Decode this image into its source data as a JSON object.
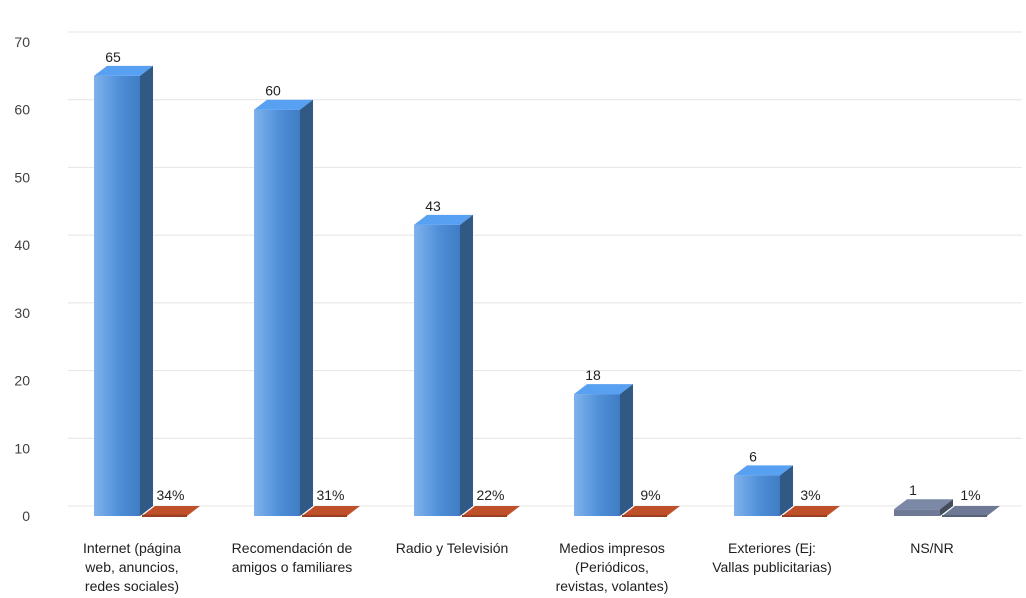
{
  "chart_data": {
    "type": "bar",
    "title": "",
    "xlabel": "",
    "ylabel": "",
    "ylim": [
      0,
      70
    ],
    "yticks": [
      0,
      10,
      20,
      30,
      40,
      50,
      60,
      70
    ],
    "grid": true,
    "style": "3d-clustered-column",
    "categories": [
      [
        "Internet (página",
        "web, anuncios,",
        "redes sociales)"
      ],
      [
        "Recomendación de",
        "amigos o familiares"
      ],
      [
        "Radio y  Televisión"
      ],
      [
        "Medios impresos",
        "(Periódicos,",
        "revistas, volantes)"
      ],
      [
        "Exteriores (Ej:",
        "Vallas publicitarias)"
      ],
      [
        "NS/NR"
      ]
    ],
    "series": [
      {
        "values": [
          65,
          60,
          43,
          18,
          6,
          1
        ],
        "labels": [
          "65",
          "60",
          "43",
          "18",
          "6",
          "1"
        ],
        "color": "#4f8fd8"
      },
      {
        "values": [
          0.34,
          0.31,
          0.22,
          0.09,
          0.03,
          0.01
        ],
        "labels": [
          "34%",
          "31%",
          "22%",
          "9%",
          "3%",
          "1%"
        ],
        "color": "#c0502a"
      }
    ]
  }
}
